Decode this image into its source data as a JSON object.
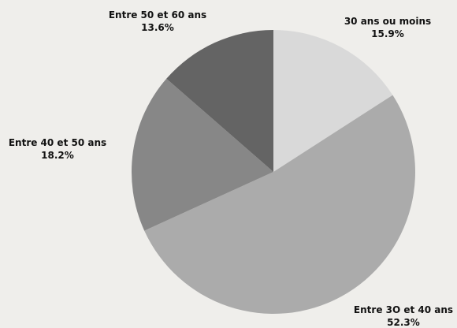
{
  "chart_data": {
    "type": "pie",
    "title": "",
    "slices": [
      {
        "label": "30 ans ou moins",
        "value": 15.9,
        "value_label": "15.9%",
        "color": "#d9d9d9"
      },
      {
        "label": "Entre 3O et 40 ans",
        "value": 52.3,
        "value_label": "52.3%",
        "color": "#ababab"
      },
      {
        "label": "Entre 40 et 50 ans",
        "value": 18.2,
        "value_label": "18.2%",
        "color": "#878787"
      },
      {
        "label": "Entre 50 et 60 ans",
        "value": 13.6,
        "value_label": "13.6%",
        "color": "#646464"
      }
    ],
    "start_angle": "12 o'clock",
    "direction": "clockwise",
    "legend": "none",
    "background": "#efeeeb"
  }
}
